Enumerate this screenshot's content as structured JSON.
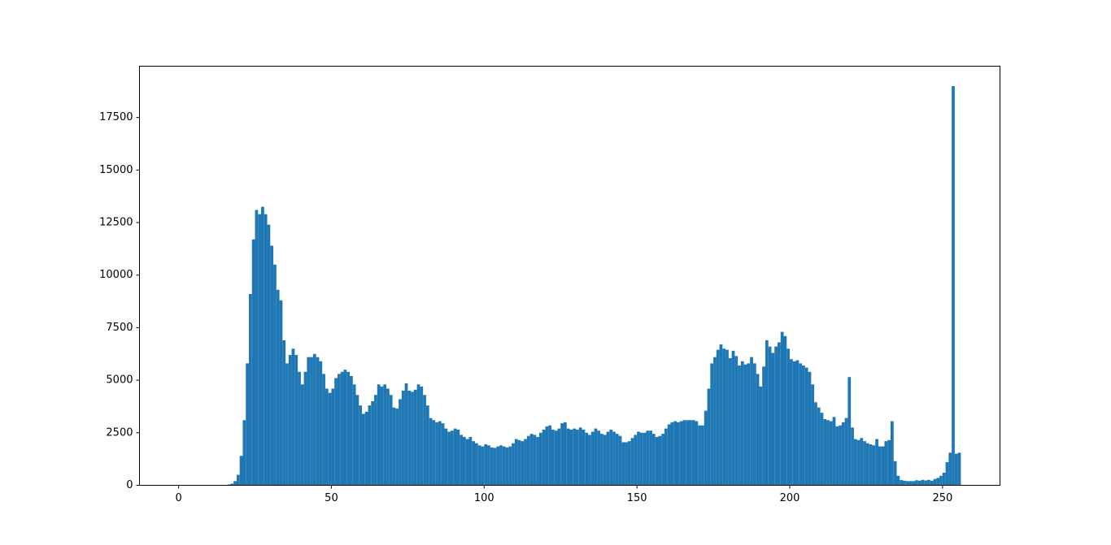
{
  "chart_data": {
    "type": "histogram",
    "color": "#1f77b4",
    "bins": [
      0,
      1,
      2,
      3,
      4,
      5,
      6,
      7,
      8,
      9,
      10,
      11,
      12,
      13,
      14,
      15,
      16,
      17,
      18,
      19,
      20,
      21,
      22,
      23,
      24,
      25,
      26,
      27,
      28,
      29,
      30,
      31,
      32,
      33,
      34,
      35,
      36,
      37,
      38,
      39,
      40,
      41,
      42,
      43,
      44,
      45,
      46,
      47,
      48,
      49,
      50,
      51,
      52,
      53,
      54,
      55,
      56,
      57,
      58,
      59,
      60,
      61,
      62,
      63,
      64,
      65,
      66,
      67,
      68,
      69,
      70,
      71,
      72,
      73,
      74,
      75,
      76,
      77,
      78,
      79,
      80,
      81,
      82,
      83,
      84,
      85,
      86,
      87,
      88,
      89,
      90,
      91,
      92,
      93,
      94,
      95,
      96,
      97,
      98,
      99,
      100,
      101,
      102,
      103,
      104,
      105,
      106,
      107,
      108,
      109,
      110,
      111,
      112,
      113,
      114,
      115,
      116,
      117,
      118,
      119,
      120,
      121,
      122,
      123,
      124,
      125,
      126,
      127,
      128,
      129,
      130,
      131,
      132,
      133,
      134,
      135,
      136,
      137,
      138,
      139,
      140,
      141,
      142,
      143,
      144,
      145,
      146,
      147,
      148,
      149,
      150,
      151,
      152,
      153,
      154,
      155,
      156,
      157,
      158,
      159,
      160,
      161,
      162,
      163,
      164,
      165,
      166,
      167,
      168,
      169,
      170,
      171,
      172,
      173,
      174,
      175,
      176,
      177,
      178,
      179,
      180,
      181,
      182,
      183,
      184,
      185,
      186,
      187,
      188,
      189,
      190,
      191,
      192,
      193,
      194,
      195,
      196,
      197,
      198,
      199,
      200,
      201,
      202,
      203,
      204,
      205,
      206,
      207,
      208,
      209,
      210,
      211,
      212,
      213,
      214,
      215,
      216,
      217,
      218,
      219,
      220,
      221,
      222,
      223,
      224,
      225,
      226,
      227,
      228,
      229,
      230,
      231,
      232,
      233,
      234,
      235,
      236,
      237,
      238,
      239,
      240,
      241,
      242,
      243,
      244,
      245,
      246,
      247,
      248,
      249,
      250,
      251,
      252,
      253,
      254,
      255,
      256
    ],
    "counts": [
      0,
      0,
      0,
      0,
      0,
      0,
      0,
      0,
      0,
      0,
      0,
      0,
      0,
      0,
      0,
      20,
      40,
      80,
      200,
      500,
      1400,
      3100,
      5800,
      9100,
      11700,
      13100,
      12900,
      13250,
      12900,
      12400,
      11400,
      10500,
      9300,
      8800,
      6900,
      5800,
      6200,
      6500,
      6200,
      5400,
      4800,
      5400,
      6100,
      6100,
      6250,
      6100,
      5900,
      5300,
      4600,
      4400,
      4600,
      5100,
      5300,
      5400,
      5500,
      5400,
      5200,
      4800,
      4300,
      3800,
      3400,
      3500,
      3800,
      4000,
      4300,
      4800,
      4700,
      4800,
      4600,
      4300,
      3700,
      3650,
      4100,
      4500,
      4850,
      4500,
      4450,
      4550,
      4800,
      4700,
      4300,
      3800,
      3200,
      3100,
      3000,
      3050,
      2950,
      2700,
      2550,
      2600,
      2700,
      2650,
      2400,
      2300,
      2200,
      2300,
      2100,
      2000,
      1900,
      1850,
      1950,
      1900,
      1800,
      1780,
      1850,
      1900,
      1850,
      1800,
      1850,
      2000,
      2200,
      2150,
      2100,
      2200,
      2350,
      2450,
      2400,
      2300,
      2500,
      2650,
      2800,
      2850,
      2650,
      2600,
      2700,
      2950,
      3000,
      2700,
      2650,
      2700,
      2650,
      2750,
      2650,
      2500,
      2400,
      2550,
      2700,
      2600,
      2450,
      2400,
      2550,
      2650,
      2550,
      2450,
      2350,
      2050,
      2050,
      2100,
      2250,
      2400,
      2550,
      2500,
      2500,
      2600,
      2600,
      2450,
      2300,
      2350,
      2450,
      2700,
      2900,
      3000,
      3050,
      3000,
      3050,
      3100,
      3100,
      3100,
      3100,
      3050,
      2850,
      2850,
      3550,
      4600,
      5800,
      6100,
      6450,
      6700,
      6500,
      6450,
      6050,
      6400,
      6150,
      5700,
      5900,
      5750,
      5800,
      6100,
      5800,
      5300,
      4700,
      5650,
      6900,
      6600,
      6300,
      6600,
      6800,
      7300,
      7100,
      6500,
      6000,
      5900,
      5950,
      5800,
      5700,
      5600,
      5400,
      4800,
      3950,
      3700,
      3450,
      3150,
      3100,
      3050,
      3250,
      2800,
      2850,
      3000,
      3200,
      5150,
      2750,
      2200,
      2150,
      2250,
      2100,
      2000,
      1950,
      1900,
      2200,
      1850,
      1850,
      2100,
      2150,
      3050,
      1150,
      450,
      250,
      220,
      200,
      200,
      200,
      240,
      220,
      260,
      230,
      260,
      220,
      300,
      350,
      450,
      600,
      1100,
      1550,
      18990,
      1500,
      1550
    ],
    "xlim": [
      -12.8,
      268.8
    ],
    "ylim": [
      0,
      19940
    ],
    "xticks": [
      0,
      50,
      100,
      150,
      200,
      250
    ],
    "yticks": [
      0,
      2500,
      5000,
      7500,
      10000,
      12500,
      15000,
      17500
    ]
  }
}
